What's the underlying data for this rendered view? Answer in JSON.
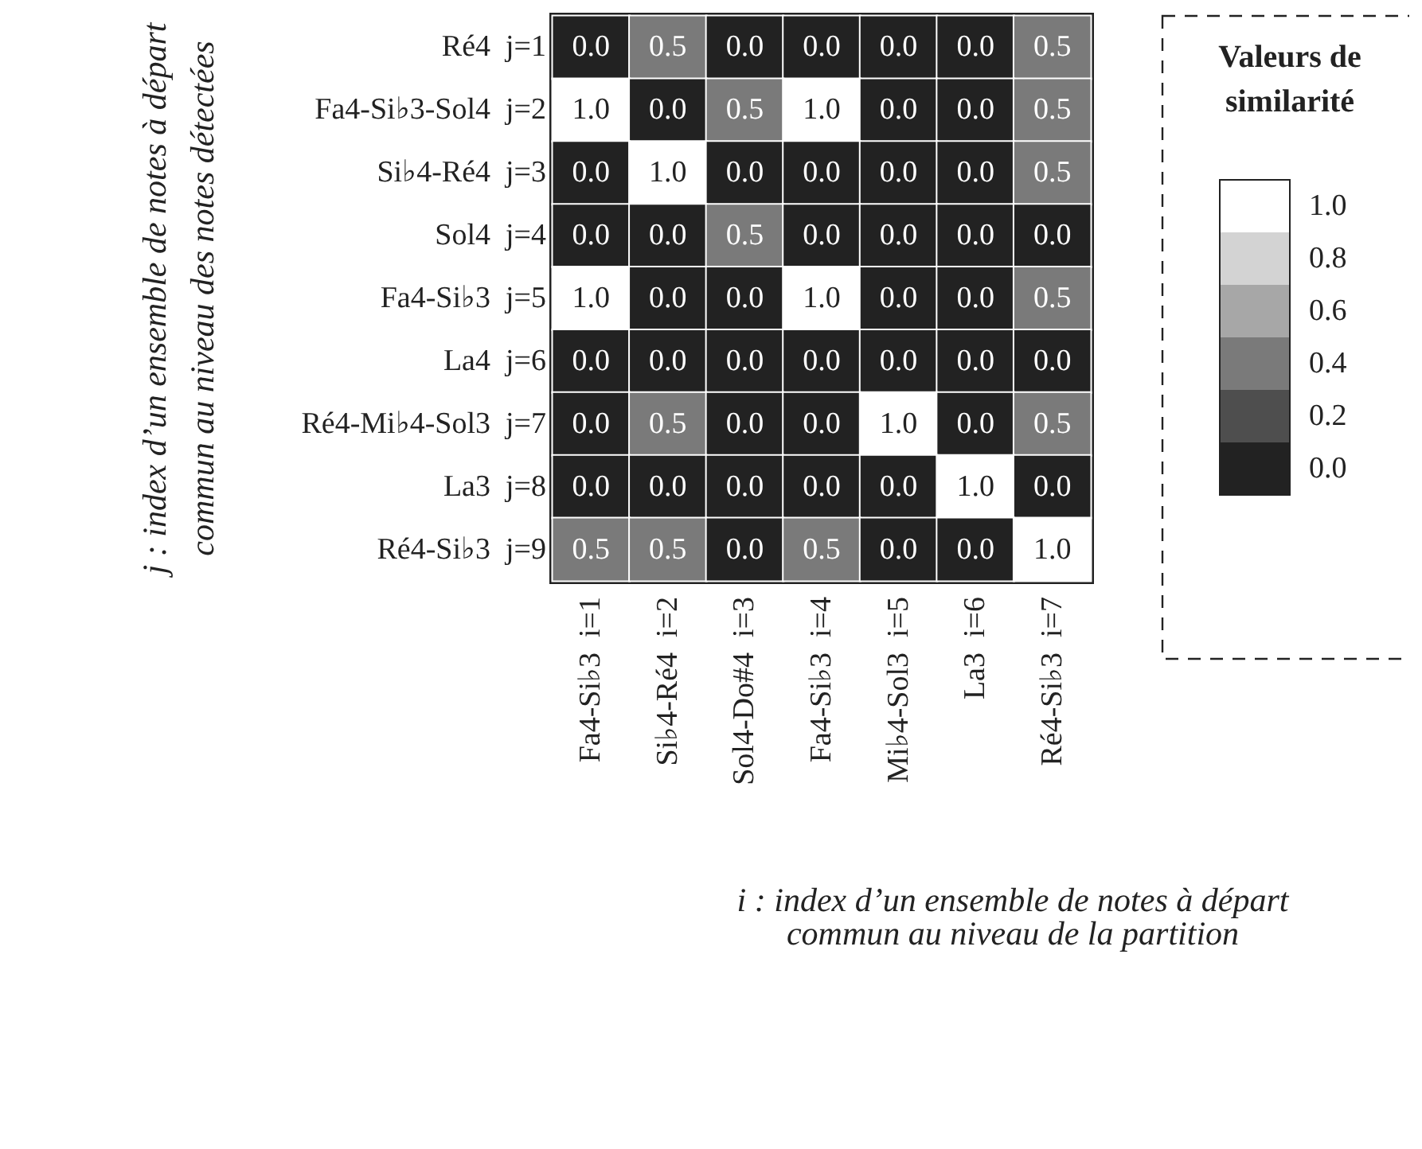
{
  "chart_data": {
    "type": "heatmap",
    "xlabel": "i : index d’un ensemble de notes à départ\ncommun au niveau de la partition",
    "ylabel": "j : index d’un ensemble de notes à départ\ncommun au niveau des notes détectées",
    "legend_title": "Valeurs de\nsimilarité",
    "categories": [
      "Fa4-Si♭3  i=1",
      "Si♭4-Ré4  i=2",
      "Sol4-Do#4  i=3",
      "Fa4-Si♭3  i=4",
      "Mi♭4-Sol3  i=5",
      "La3  i=6",
      "Ré4-Si♭3  i=7"
    ],
    "y_categories": [
      "Ré4  j=1",
      "Fa4-Si♭3-Sol4  j=2",
      "Si♭4-Ré4  j=3",
      "Sol4  j=4",
      "Fa4-Si♭3  j=5",
      "La4  j=6",
      "Ré4-Mi♭4-Sol3  j=7",
      "La3  j=8",
      "Ré4-Si♭3  j=9"
    ],
    "cells": [
      [
        0,
        0.5,
        0,
        0,
        0,
        0,
        0.5
      ],
      [
        1,
        0,
        0.5,
        1,
        0,
        0,
        0.5
      ],
      [
        0,
        1,
        0,
        0,
        0,
        0,
        0.5
      ],
      [
        0,
        0,
        0.5,
        0,
        0,
        0,
        0
      ],
      [
        1,
        0,
        0,
        1,
        0,
        0,
        0.5
      ],
      [
        0,
        0,
        0,
        0,
        0,
        0,
        0
      ],
      [
        0,
        0.5,
        0,
        0,
        1,
        0,
        0.5
      ],
      [
        0,
        0,
        0,
        0,
        0,
        1,
        0
      ],
      [
        0.5,
        0.5,
        0,
        0.5,
        0,
        0,
        1
      ]
    ],
    "cell_labels": [
      [
        "0.0",
        "0.5",
        "0.0",
        "0.0",
        "0.0",
        "0.0",
        "0.5"
      ],
      [
        "1.0",
        "0.0",
        "0.5",
        "1.0",
        "0.0",
        "0.0",
        "0.5"
      ],
      [
        "0.0",
        "1.0",
        "0.0",
        "0.0",
        "0.0",
        "0.0",
        "0.5"
      ],
      [
        "0.0",
        "0.0",
        "0.5",
        "0.0",
        "0.0",
        "0.0",
        "0.0"
      ],
      [
        "1.0",
        "0.0",
        "0.0",
        "1.0",
        "0.0",
        "0.0",
        "0.5"
      ],
      [
        "0.0",
        "0.0",
        "0.0",
        "0.0",
        "0.0",
        "0.0",
        "0.0"
      ],
      [
        "0.0",
        "0.5",
        "0.0",
        "0.0",
        "1.0",
        "0.0",
        "0.5"
      ],
      [
        "0.0",
        "0.0",
        "0.0",
        "0.0",
        "0.0",
        "1.0",
        "0.0"
      ],
      [
        "0.5",
        "0.5",
        "0.0",
        "0.5",
        "0.0",
        "0.0",
        "1.0"
      ]
    ],
    "clim": [
      -0.1,
      1.1
    ],
    "cticks": [
      {
        "value": 0,
        "label": "0.0"
      },
      {
        "value": 0.2,
        "label": "0.2"
      },
      {
        "value": 0.4,
        "label": "0.4"
      },
      {
        "value": 0.6,
        "label": "0.6"
      },
      {
        "value": 0.8,
        "label": "0.8"
      },
      {
        "value": 1,
        "label": "1.0"
      }
    ]
  }
}
